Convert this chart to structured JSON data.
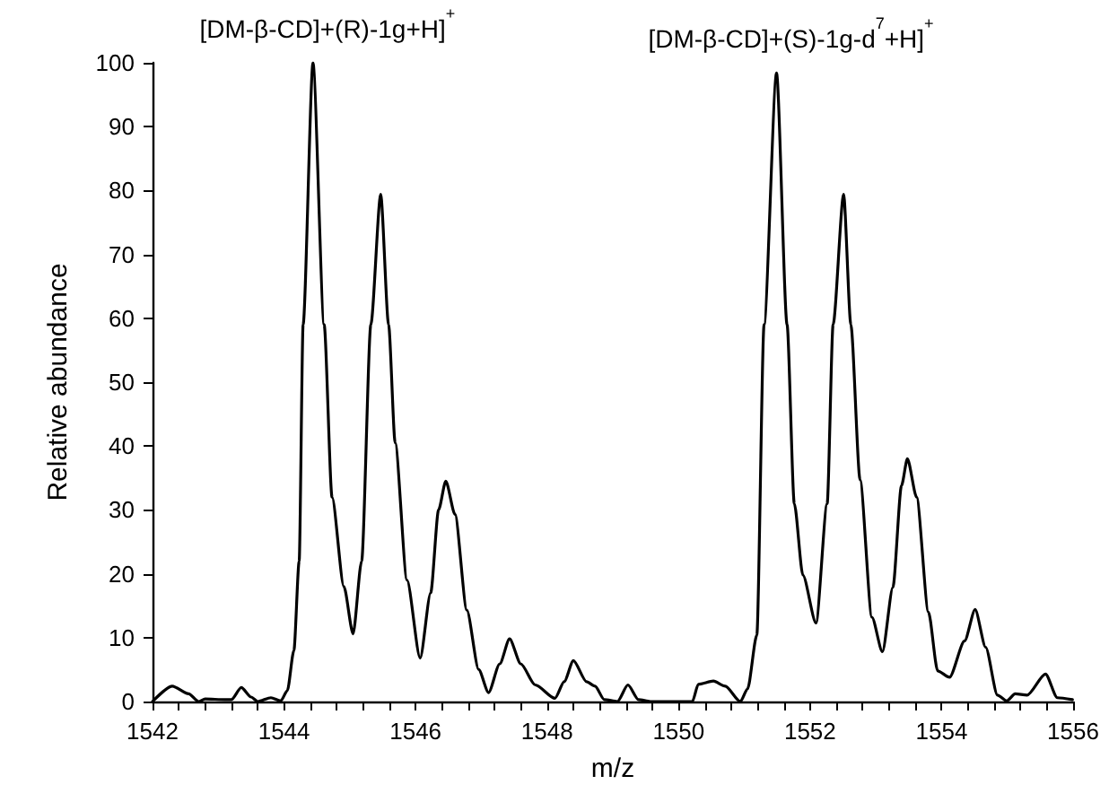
{
  "chart_data": {
    "type": "line",
    "xlabel": "m/z",
    "ylabel": "Relative abundance",
    "annotations": [
      {
        "text": "[DM-β-CD]+(R)-1g+H]$^{+}$",
        "x": 1544.44,
        "y": 100
      },
      {
        "text": "[DM-β-CD]+(S)-1g-d$^{7}$+H]$^{+}$",
        "x": 1551.49,
        "y": 98.4
      }
    ],
    "x": [
      1542.0,
      1542.3,
      1542.55,
      1542.7,
      1542.8,
      1543.1,
      1543.2,
      1543.35,
      1543.5,
      1543.6,
      1543.8,
      1543.95,
      1544.05,
      1544.15,
      1544.23,
      1544.29,
      1544.44,
      1544.61,
      1544.73,
      1544.91,
      1545.05,
      1545.18,
      1545.32,
      1545.47,
      1545.59,
      1545.69,
      1545.87,
      1546.07,
      1546.23,
      1546.35,
      1546.46,
      1546.6,
      1546.78,
      1546.96,
      1547.11,
      1547.28,
      1547.43,
      1547.6,
      1547.82,
      1548.12,
      1548.26,
      1548.4,
      1548.6,
      1548.73,
      1548.87,
      1549.07,
      1549.23,
      1549.39,
      1549.57,
      1550.21,
      1550.3,
      1550.53,
      1550.71,
      1550.94,
      1551.05,
      1551.19,
      1551.3,
      1551.49,
      1551.65,
      1551.76,
      1551.89,
      1552.09,
      1552.26,
      1552.35,
      1552.51,
      1552.62,
      1552.76,
      1552.94,
      1553.1,
      1553.26,
      1553.39,
      1553.48,
      1553.62,
      1553.8,
      1553.94,
      1554.12,
      1554.35,
      1554.51,
      1554.67,
      1554.85,
      1554.99,
      1555.12,
      1555.3,
      1555.58,
      1555.76,
      1555.99
    ],
    "series": [
      {
        "color": "#000000",
        "values": [
          0,
          2.4,
          1.2,
          0,
          0.4,
          0.3,
          0.3,
          2.2,
          0.7,
          0,
          0.6,
          0.1,
          1.7,
          8,
          22,
          59,
          100,
          59,
          32,
          18,
          10.6,
          22,
          59,
          79.4,
          59,
          40.5,
          19,
          6.8,
          17,
          30,
          34.5,
          29.3,
          14.3,
          5,
          1.4,
          5.9,
          9.8,
          5.9,
          2.6,
          0.5,
          3.1,
          6.4,
          3.1,
          2.4,
          0.3,
          0,
          2.6,
          0.3,
          0,
          0,
          2.7,
          3.2,
          2.4,
          0,
          2,
          10.4,
          59,
          98.4,
          59,
          31,
          19.8,
          12.3,
          31,
          59,
          79.4,
          59,
          34.7,
          13.2,
          7.8,
          17.9,
          33.8,
          38,
          32,
          14,
          4.8,
          3.8,
          9.5,
          14.4,
          8.5,
          1,
          0.1,
          1.2,
          1,
          4.3,
          0.6,
          0.3
        ]
      }
    ],
    "xlim": [
      1542,
      1556
    ],
    "xticks": [
      1542,
      {
        "value": 1542.4,
        "label": null
      },
      {
        "value": 1542.8,
        "label": null
      },
      {
        "value": 1543.2,
        "label": null
      },
      {
        "value": 1543.6,
        "label": null
      },
      1544,
      {
        "value": 1544.4,
        "label": null
      },
      {
        "value": 1544.8,
        "label": null
      },
      {
        "value": 1545.2,
        "label": null
      },
      {
        "value": 1545.6,
        "label": null
      },
      1546,
      {
        "value": 1546.4,
        "label": null
      },
      {
        "value": 1546.8,
        "label": null
      },
      {
        "value": 1547.2,
        "label": null
      },
      {
        "value": 1547.6,
        "label": null
      },
      1548,
      {
        "value": 1548.4,
        "label": null
      },
      {
        "value": 1548.8,
        "label": null
      },
      {
        "value": 1549.2,
        "label": null
      },
      {
        "value": 1549.6,
        "label": null
      },
      1550,
      {
        "value": 1550.4,
        "label": null
      },
      {
        "value": 1550.8,
        "label": null
      },
      {
        "value": 1551.2,
        "label": null
      },
      {
        "value": 1551.6,
        "label": null
      },
      1552,
      {
        "value": 1552.4,
        "label": null
      },
      {
        "value": 1552.8,
        "label": null
      },
      {
        "value": 1553.2,
        "label": null
      },
      {
        "value": 1553.6,
        "label": null
      },
      1554,
      {
        "value": 1554.4,
        "label": null
      },
      {
        "value": 1554.8,
        "label": null
      },
      {
        "value": 1555.2,
        "label": null
      },
      {
        "value": 1555.6,
        "label": null
      },
      1556
    ],
    "ylim": [
      0,
      100
    ],
    "yticks": [
      0,
      10,
      20,
      30,
      40,
      50,
      60,
      70,
      80,
      90,
      100
    ],
    "grid": false,
    "marker": "none",
    "line_style": "solid"
  }
}
